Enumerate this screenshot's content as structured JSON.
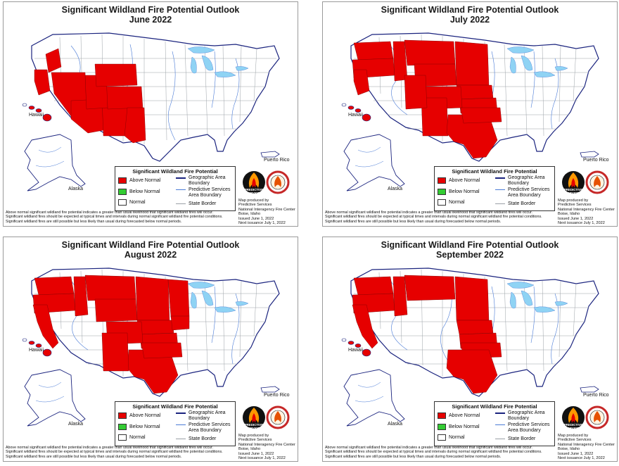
{
  "main_title": "Significant Wildland Fire Potential Outlook",
  "colors": {
    "above_normal": "#e60000",
    "below_normal": "#33cc33",
    "normal": "#ffffff",
    "geographic_area_boundary": "#1a237e",
    "predictive_services_boundary": "#4a7bd6",
    "state_border": "#9aa0a6",
    "lakes": "#8fd3f4"
  },
  "labels": {
    "hawaii": "Hawaii",
    "alaska": "Alaska",
    "puerto_rico": "Puerto Rico"
  },
  "legend": {
    "title": "Significant Wildland Fire Potential",
    "above_normal": "Above Normal",
    "below_normal": "Below Normal",
    "normal": "Normal",
    "geographic_line1": "Geographic Area",
    "geographic_line2": "Boundary",
    "predictive_line1": "Predictive Services",
    "predictive_line2": "Area Boundary",
    "state_border": "State Border"
  },
  "logos": {
    "predictive_line1": "PREDICTIVE",
    "predictive_line2": "SERVICES"
  },
  "credits": {
    "line1": "Map produced by",
    "line2": "Predictive Services",
    "line3": "National Interagency Fire Center",
    "line4": "Boise, Idaho",
    "line5": "Issued June 1, 2022",
    "line6": "Next issuance July 1, 2022"
  },
  "footnote": {
    "line1": "Above normal significant wildland fire potential indicates a greater than usual likelihood that significant wildland fires will occur.",
    "line2": "Significant wildland fires should be expected at typical times and intervals during normal significant wildland fire potential conditions.",
    "line3": "Significant wildland fires are still possible but less likely than usual during forecasted below normal periods."
  },
  "panels": [
    {
      "month": "June 2022",
      "above_normal_regions": [
        "northern-california",
        "southern-oregon",
        "nevada",
        "arizona",
        "new-mexico",
        "colorado",
        "west-texas",
        "utah",
        "wyoming",
        "hawaii"
      ]
    },
    {
      "month": "July 2022",
      "above_normal_regions": [
        "washington",
        "oregon",
        "northern-california",
        "idaho",
        "montana",
        "wyoming",
        "dakotas",
        "nebraska",
        "kansas",
        "colorado",
        "new-mexico",
        "texas",
        "oklahoma",
        "utah",
        "hawaii"
      ]
    },
    {
      "month": "August 2022",
      "above_normal_regions": [
        "washington",
        "oregon",
        "california",
        "idaho",
        "montana",
        "wyoming",
        "dakotas",
        "nebraska",
        "kansas",
        "minnesota",
        "iowa",
        "colorado",
        "texas",
        "oklahoma",
        "new-mexico",
        "hawaii"
      ]
    },
    {
      "month": "September 2022",
      "above_normal_regions": [
        "washington",
        "oregon",
        "california",
        "idaho",
        "montana",
        "dakotas",
        "nebraska",
        "kansas",
        "oklahoma",
        "texas",
        "hawaii"
      ]
    }
  ]
}
